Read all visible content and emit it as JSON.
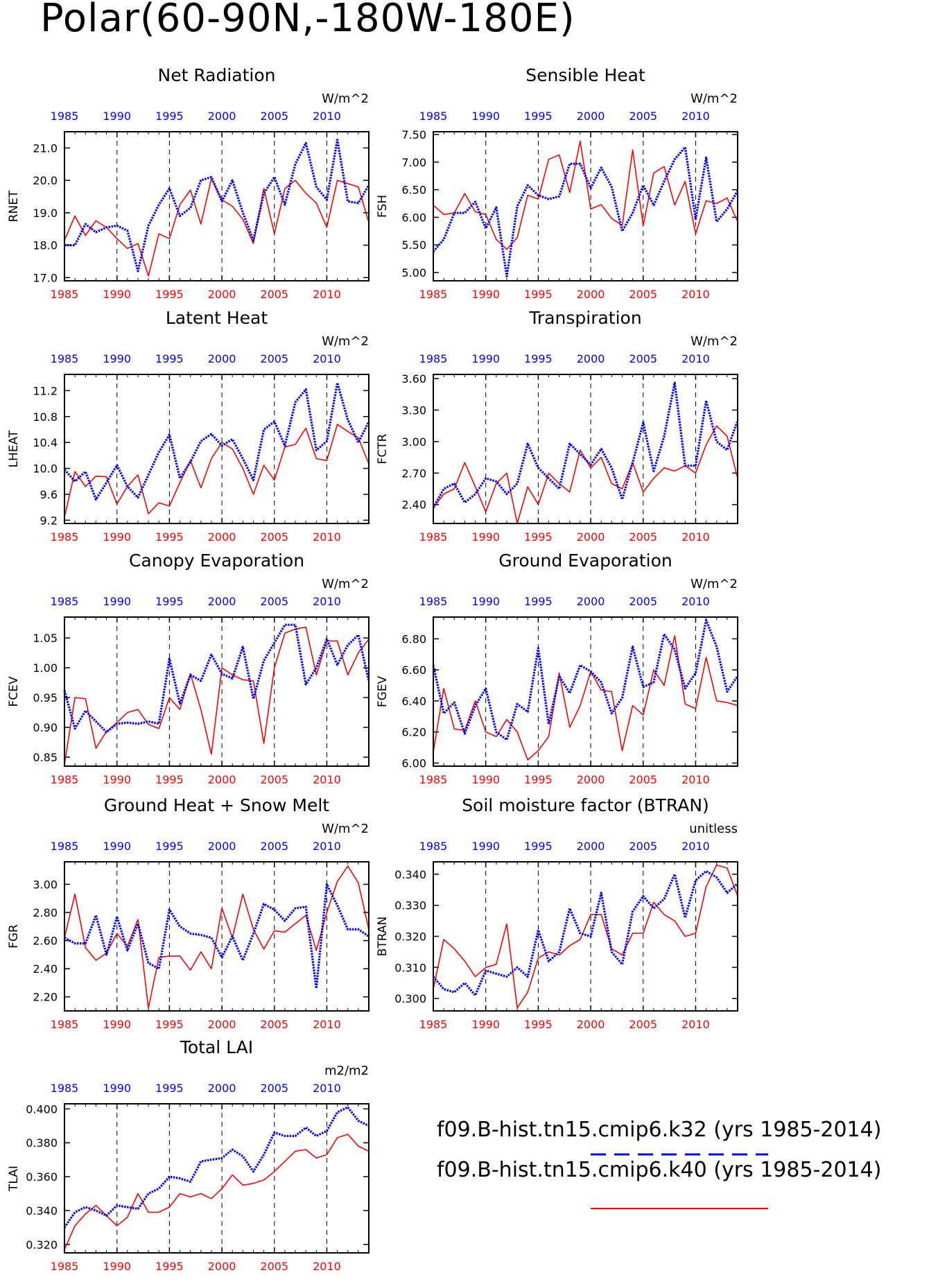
{
  "title": "Polar(60-90N,-180W-180E)",
  "colors": {
    "case1": "#0000ff",
    "case2": "#ff0000",
    "axis": "#000000"
  },
  "legend": {
    "entries": [
      {
        "label": "f09.B-hist.tn15.cmip6.k32 (yrs 1985-2014)",
        "color": "#0000ff",
        "style": "dashed"
      },
      {
        "label": "f09.B-hist.tn15.cmip6.k40 (yrs 1985-2014)",
        "color": "#ff0000",
        "style": "solid"
      }
    ]
  },
  "chart_data": [
    {
      "type": "line",
      "title": "Net Radiation",
      "ylabel": "RNET",
      "units": "W/m^2",
      "ylim": [
        16.9,
        21.5
      ],
      "yticks": [
        17.0,
        18.0,
        19.0,
        20.0,
        21.0
      ],
      "yfmt": 1,
      "xticks": [
        1985,
        1990,
        1995,
        2000,
        2005,
        2010
      ],
      "xlim": [
        1985,
        2014
      ],
      "series": [
        {
          "name": "f09.B-hist.tn15.cmip6.k32",
          "values": [
            18.0,
            18.0,
            18.65,
            18.4,
            18.55,
            18.6,
            18.45,
            17.2,
            18.6,
            19.25,
            19.75,
            18.9,
            19.15,
            20.0,
            20.1,
            19.35,
            20.0,
            19.0,
            18.15,
            19.6,
            20.1,
            19.25,
            20.5,
            21.15,
            19.8,
            19.4,
            21.25,
            19.35,
            19.3,
            19.85
          ]
        },
        {
          "name": "f09.B-hist.tn15.cmip6.k40",
          "values": [
            18.15,
            18.9,
            18.3,
            18.75,
            18.55,
            18.2,
            17.9,
            18.05,
            17.05,
            18.35,
            18.2,
            19.25,
            19.7,
            18.65,
            20.05,
            19.4,
            19.2,
            18.8,
            18.05,
            19.75,
            18.35,
            19.75,
            20.0,
            19.6,
            19.3,
            18.55,
            20.0,
            19.9,
            19.8,
            18.7
          ]
        }
      ]
    },
    {
      "type": "line",
      "title": "Sensible Heat",
      "ylabel": "FSH",
      "units": "W/m^2",
      "ylim": [
        4.85,
        7.55
      ],
      "yticks": [
        5.0,
        5.5,
        6.0,
        6.5,
        7.0,
        7.5
      ],
      "yfmt": 2,
      "yaxis": "auto",
      "xticks": [
        1985,
        1990,
        1995,
        2000,
        2005,
        2010
      ],
      "xlim": [
        1985,
        2014
      ],
      "series": [
        {
          "name": "f09.B-hist.tn15.cmip6.k32",
          "values": [
            5.38,
            5.6,
            6.08,
            6.08,
            6.28,
            5.8,
            6.18,
            4.93,
            6.2,
            6.58,
            6.4,
            6.33,
            6.38,
            6.97,
            6.97,
            6.53,
            6.9,
            6.55,
            5.75,
            6.08,
            6.58,
            6.22,
            6.65,
            7.05,
            7.27,
            5.97,
            7.08,
            5.92,
            6.15,
            6.48
          ]
        },
        {
          "name": "f09.B-hist.tn15.cmip6.k40",
          "values": [
            6.22,
            6.05,
            6.08,
            6.43,
            6.1,
            6.05,
            5.6,
            5.42,
            5.63,
            6.4,
            6.33,
            7.05,
            7.13,
            6.45,
            7.38,
            6.15,
            6.23,
            5.98,
            5.85,
            7.22,
            5.85,
            6.8,
            6.92,
            6.22,
            6.65,
            5.7,
            6.3,
            6.25,
            6.35,
            5.92
          ]
        }
      ]
    },
    {
      "type": "line",
      "title": "Latent Heat",
      "ylabel": "LHEAT",
      "units": "W/m^2",
      "ylim": [
        9.15,
        11.45
      ],
      "yticks": [
        9.2,
        9.6,
        10.0,
        10.4,
        10.8,
        11.2
      ],
      "yfmt": 1,
      "xticks": [
        1985,
        1990,
        1995,
        2000,
        2005,
        2010
      ],
      "xlim": [
        1985,
        2014
      ],
      "series": [
        {
          "name": "f09.B-hist.tn15.cmip6.k32",
          "values": [
            9.98,
            9.8,
            9.95,
            9.52,
            9.78,
            10.05,
            9.72,
            9.55,
            9.9,
            10.25,
            10.52,
            9.85,
            10.1,
            10.42,
            10.53,
            10.35,
            10.45,
            10.15,
            9.82,
            10.6,
            10.72,
            10.35,
            11.02,
            11.22,
            10.28,
            10.42,
            11.32,
            10.75,
            10.4,
            10.72
          ]
        },
        {
          "name": "f09.B-hist.tn15.cmip6.k40",
          "values": [
            9.25,
            9.95,
            9.72,
            9.88,
            9.87,
            9.45,
            9.72,
            9.9,
            9.3,
            9.47,
            9.42,
            9.78,
            10.12,
            9.7,
            10.15,
            10.4,
            10.3,
            10.0,
            9.6,
            10.05,
            9.82,
            10.33,
            10.37,
            10.62,
            10.15,
            10.12,
            10.68,
            10.57,
            10.47,
            10.07
          ]
        }
      ]
    },
    {
      "type": "line",
      "title": "Transpiration",
      "ylabel": "FCTR",
      "units": "W/m^2",
      "ylim": [
        2.22,
        3.64
      ],
      "yticks": [
        2.4,
        2.7,
        3.0,
        3.3,
        3.6
      ],
      "yfmt": 2,
      "xticks": [
        1985,
        1990,
        1995,
        2000,
        2005,
        2010
      ],
      "xlim": [
        1985,
        2014
      ],
      "series": [
        {
          "name": "f09.B-hist.tn15.cmip6.k32",
          "values": [
            2.37,
            2.55,
            2.6,
            2.42,
            2.5,
            2.65,
            2.62,
            2.5,
            2.6,
            2.98,
            2.75,
            2.65,
            2.55,
            2.98,
            2.88,
            2.78,
            2.93,
            2.75,
            2.45,
            2.8,
            3.18,
            2.72,
            3.05,
            3.56,
            2.77,
            2.77,
            3.39,
            3.0,
            2.92,
            3.2
          ]
        },
        {
          "name": "f09.B-hist.tn15.cmip6.k40",
          "values": [
            2.37,
            2.5,
            2.55,
            2.8,
            2.57,
            2.33,
            2.6,
            2.7,
            2.22,
            2.57,
            2.4,
            2.7,
            2.6,
            2.52,
            2.92,
            2.75,
            2.85,
            2.6,
            2.55,
            2.8,
            2.52,
            2.65,
            2.75,
            2.72,
            2.77,
            2.7,
            2.97,
            3.15,
            3.05,
            2.65
          ]
        }
      ]
    },
    {
      "type": "line",
      "title": "Canopy Evaporation",
      "ylabel": "FCEV",
      "units": "W/m^2",
      "ylim": [
        0.835,
        1.085
      ],
      "yticks": [
        0.85,
        0.9,
        0.95,
        1.0,
        1.05
      ],
      "yfmt": 2,
      "xticks": [
        1985,
        1990,
        1995,
        2000,
        2005,
        2010
      ],
      "xlim": [
        1985,
        2014
      ],
      "series": [
        {
          "name": "f09.B-hist.tn15.cmip6.k32",
          "values": [
            0.962,
            0.898,
            0.928,
            0.91,
            0.892,
            0.906,
            0.908,
            0.906,
            0.91,
            0.906,
            1.015,
            0.94,
            0.988,
            0.978,
            1.022,
            0.99,
            0.982,
            1.035,
            0.948,
            1.012,
            1.042,
            1.072,
            1.072,
            0.972,
            1.0,
            1.048,
            1.005,
            1.038,
            1.055,
            0.978
          ]
        },
        {
          "name": "f09.B-hist.tn15.cmip6.k40",
          "values": [
            0.838,
            0.95,
            0.948,
            0.865,
            0.893,
            0.908,
            0.925,
            0.93,
            0.905,
            0.898,
            0.95,
            0.93,
            0.99,
            0.93,
            0.855,
            1.0,
            0.988,
            0.98,
            0.978,
            0.873,
            1.0,
            1.058,
            1.065,
            1.068,
            0.988,
            1.045,
            1.045,
            0.988,
            1.025,
            1.048
          ]
        }
      ]
    },
    {
      "type": "line",
      "title": "Ground Evaporation",
      "ylabel": "FGEV",
      "units": "W/m^2",
      "ylim": [
        5.98,
        6.94
      ],
      "yticks": [
        6.0,
        6.2,
        6.4,
        6.6,
        6.8
      ],
      "yfmt": 2,
      "xticks": [
        1985,
        1990,
        1995,
        2000,
        2005,
        2010
      ],
      "xlim": [
        1985,
        2014
      ],
      "series": [
        {
          "name": "f09.B-hist.tn15.cmip6.k32",
          "values": [
            6.63,
            6.32,
            6.39,
            6.19,
            6.37,
            6.48,
            6.2,
            6.15,
            6.38,
            6.33,
            6.74,
            6.25,
            6.56,
            6.45,
            6.63,
            6.59,
            6.52,
            6.32,
            6.42,
            6.75,
            6.49,
            6.52,
            6.83,
            6.73,
            6.48,
            6.58,
            6.92,
            6.75,
            6.46,
            6.56
          ]
        },
        {
          "name": "f09.B-hist.tn15.cmip6.k40",
          "values": [
            6.07,
            6.48,
            6.22,
            6.21,
            6.4,
            6.2,
            6.17,
            6.28,
            6.2,
            6.02,
            6.08,
            6.17,
            6.58,
            6.23,
            6.37,
            6.59,
            6.47,
            6.46,
            6.08,
            6.37,
            6.31,
            6.6,
            6.5,
            6.82,
            6.38,
            6.35,
            6.68,
            6.4,
            6.39,
            6.37
          ]
        }
      ]
    },
    {
      "type": "line",
      "title": "Ground Heat + Snow Melt",
      "ylabel": "FGR",
      "units": "W/m^2",
      "ylim": [
        2.1,
        3.16
      ],
      "yticks": [
        2.2,
        2.4,
        2.6,
        2.8,
        3.0
      ],
      "yfmt": 2,
      "xticks": [
        1985,
        1990,
        1995,
        2000,
        2005,
        2010
      ],
      "xlim": [
        1985,
        2014
      ],
      "series": [
        {
          "name": "f09.B-hist.tn15.cmip6.k32",
          "values": [
            2.62,
            2.58,
            2.58,
            2.78,
            2.5,
            2.77,
            2.53,
            2.72,
            2.44,
            2.4,
            2.82,
            2.7,
            2.65,
            2.64,
            2.62,
            2.48,
            2.63,
            2.46,
            2.65,
            2.86,
            2.82,
            2.74,
            2.83,
            2.84,
            2.26,
            3.0,
            2.85,
            2.68,
            2.68,
            2.63
          ]
        },
        {
          "name": "f09.B-hist.tn15.cmip6.k40",
          "values": [
            2.62,
            2.93,
            2.55,
            2.46,
            2.51,
            2.65,
            2.56,
            2.75,
            2.12,
            2.48,
            2.49,
            2.49,
            2.39,
            2.52,
            2.4,
            2.83,
            2.62,
            2.93,
            2.68,
            2.54,
            2.67,
            2.66,
            2.72,
            2.78,
            2.53,
            2.8,
            3.02,
            3.13,
            3.01,
            2.68
          ]
        }
      ]
    },
    {
      "type": "line",
      "title": "Soil moisture factor (BTRAN)",
      "ylabel": "BTRAN",
      "units": "unitless",
      "ylim": [
        0.296,
        0.344
      ],
      "yticks": [
        0.3,
        0.31,
        0.32,
        0.33,
        0.34
      ],
      "yfmt": 3,
      "xticks": [
        1985,
        1990,
        1995,
        2000,
        2005,
        2010
      ],
      "xlim": [
        1985,
        2014
      ],
      "series": [
        {
          "name": "f09.B-hist.tn15.cmip6.k32",
          "values": [
            0.307,
            0.303,
            0.302,
            0.305,
            0.301,
            0.309,
            0.308,
            0.307,
            0.31,
            0.307,
            0.322,
            0.312,
            0.315,
            0.329,
            0.321,
            0.32,
            0.334,
            0.315,
            0.311,
            0.328,
            0.333,
            0.329,
            0.332,
            0.34,
            0.326,
            0.338,
            0.341,
            0.339,
            0.334,
            0.337
          ]
        },
        {
          "name": "f09.B-hist.tn15.cmip6.k40",
          "values": [
            0.303,
            0.319,
            0.316,
            0.312,
            0.307,
            0.31,
            0.311,
            0.324,
            0.297,
            0.302,
            0.313,
            0.315,
            0.314,
            0.317,
            0.319,
            0.327,
            0.327,
            0.316,
            0.314,
            0.321,
            0.321,
            0.331,
            0.327,
            0.325,
            0.32,
            0.321,
            0.336,
            0.343,
            0.342,
            0.333
          ]
        }
      ]
    },
    {
      "type": "line",
      "title": "Total LAI",
      "ylabel": "TLAI",
      "units": "m2/m2",
      "ylim": [
        0.315,
        0.403
      ],
      "yticks": [
        0.32,
        0.34,
        0.36,
        0.38,
        0.4
      ],
      "yfmt": 3,
      "xticks": [
        1985,
        1990,
        1995,
        2000,
        2005,
        2010
      ],
      "xlim": [
        1985,
        2014
      ],
      "series": [
        {
          "name": "f09.B-hist.tn15.cmip6.k32",
          "values": [
            0.33,
            0.339,
            0.342,
            0.34,
            0.337,
            0.343,
            0.342,
            0.341,
            0.35,
            0.353,
            0.36,
            0.359,
            0.357,
            0.369,
            0.37,
            0.371,
            0.376,
            0.372,
            0.363,
            0.373,
            0.386,
            0.384,
            0.384,
            0.389,
            0.384,
            0.387,
            0.398,
            0.401,
            0.393,
            0.39
          ]
        },
        {
          "name": "f09.B-hist.tn15.cmip6.k40",
          "values": [
            0.317,
            0.331,
            0.338,
            0.343,
            0.337,
            0.331,
            0.336,
            0.35,
            0.339,
            0.339,
            0.342,
            0.35,
            0.348,
            0.35,
            0.347,
            0.353,
            0.361,
            0.355,
            0.356,
            0.358,
            0.363,
            0.369,
            0.375,
            0.376,
            0.371,
            0.373,
            0.383,
            0.385,
            0.378,
            0.375
          ]
        }
      ]
    }
  ]
}
